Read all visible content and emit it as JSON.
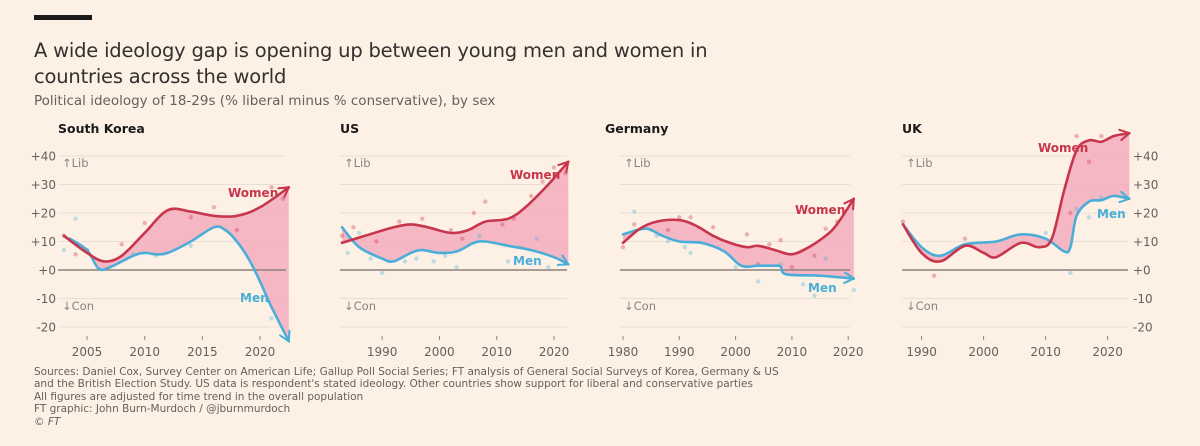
{
  "title": "A wide ideology gap is opening up between young men and women in countries across the world",
  "subtitle": "Political ideology of 18-29s (% liberal minus % conservative), by sex",
  "footer": {
    "sources": "Sources: Daniel Cox, Survey Center on American Life; Gallup Poll Social Series; FT analysis of General Social Surveys of Korea, Germany & US",
    "sources2": "and the British Election Study. US data is respondent's stated ideology. Other countries show support for liberal and conservative parties",
    "note": "All figures are adjusted for time trend in the overall population",
    "credit": "FT graphic: John Burn-Murdoch / @jburnmurdoch",
    "copyright": "© FT"
  },
  "colors": {
    "women": "#c7364c",
    "men": "#4aaed8",
    "gap_fill": "#f4a9bb",
    "background": "#fdf1e6"
  },
  "chart_data": [
    {
      "type": "line",
      "title": "South Korea",
      "ylim": [
        -20,
        40
      ],
      "yticks": [
        "+40",
        "+30",
        "+20",
        "+10",
        "+0",
        "-10",
        "-20"
      ],
      "y_axis_side": "left",
      "xticks": [
        2005,
        2010,
        2015,
        2020
      ],
      "xlim": [
        2003,
        2022.5
      ],
      "lib_label": "↑Lib",
      "con_label": "↓Con",
      "series": [
        {
          "name": "Women",
          "trend": [
            [
              2003,
              12
            ],
            [
              2005,
              6
            ],
            [
              2006.5,
              3
            ],
            [
              2008,
              5
            ],
            [
              2010,
              13
            ],
            [
              2012,
              21
            ],
            [
              2014,
              20.5
            ],
            [
              2016,
              19
            ],
            [
              2018,
              19
            ],
            [
              2020,
              22
            ],
            [
              2022.5,
              29
            ]
          ],
          "points": [
            [
              2003,
              12
            ],
            [
              2004,
              5.5
            ],
            [
              2005,
              7
            ],
            [
              2008,
              9
            ],
            [
              2010,
              16.5
            ],
            [
              2014,
              18.5
            ],
            [
              2016,
              22
            ],
            [
              2018,
              14
            ],
            [
              2021,
              29
            ],
            [
              2022,
              25
            ]
          ]
        },
        {
          "name": "Men",
          "trend": [
            [
              2003.5,
              11
            ],
            [
              2005,
              7
            ],
            [
              2006,
              0.5
            ],
            [
              2007,
              1
            ],
            [
              2009,
              5
            ],
            [
              2010,
              6
            ],
            [
              2011,
              5.5
            ],
            [
              2012,
              6
            ],
            [
              2014,
              10
            ],
            [
              2016,
              15
            ],
            [
              2017,
              14
            ],
            [
              2018,
              10
            ],
            [
              2019,
              4
            ],
            [
              2020,
              -4
            ],
            [
              2021,
              -13
            ],
            [
              2022.5,
              -25
            ]
          ],
          "points": [
            [
              2003,
              7
            ],
            [
              2004,
              18
            ],
            [
              2005,
              7
            ],
            [
              2009,
              5.5
            ],
            [
              2011,
              5
            ],
            [
              2014,
              8.5
            ],
            [
              2021,
              -17
            ]
          ]
        }
      ]
    },
    {
      "type": "line",
      "title": "US",
      "ylim": [
        -20,
        40
      ],
      "y_axis_side": "none",
      "xticks": [
        1990,
        2000,
        2010,
        2020
      ],
      "xlim": [
        1983,
        2022.5
      ],
      "lib_label": "↑Lib",
      "con_label": "↓Con",
      "series": [
        {
          "name": "Women",
          "trend": [
            [
              1983,
              9.5
            ],
            [
              1987,
              12
            ],
            [
              1992,
              15
            ],
            [
              1995,
              16
            ],
            [
              1998,
              15
            ],
            [
              2002,
              13
            ],
            [
              2005,
              14
            ],
            [
              2008,
              17
            ],
            [
              2012,
              18
            ],
            [
              2015,
              22
            ],
            [
              2019,
              30
            ],
            [
              2022.5,
              38
            ]
          ],
          "points": [
            [
              1983,
              12
            ],
            [
              1985,
              15
            ],
            [
              1989,
              10
            ],
            [
              1993,
              17
            ],
            [
              1997,
              18
            ],
            [
              2002,
              14
            ],
            [
              2004,
              11
            ],
            [
              2006,
              20
            ],
            [
              2008,
              24
            ],
            [
              2011,
              16
            ],
            [
              2013,
              18
            ],
            [
              2016,
              26
            ],
            [
              2018,
              31
            ],
            [
              2020,
              36
            ],
            [
              2022,
              34
            ]
          ]
        },
        {
          "name": "Men",
          "trend": [
            [
              1983,
              15
            ],
            [
              1986,
              8
            ],
            [
              1990,
              4
            ],
            [
              1992,
              3
            ],
            [
              1995,
              6
            ],
            [
              1997,
              7
            ],
            [
              2000,
              6
            ],
            [
              2003,
              6.5
            ],
            [
              2006,
              9.5
            ],
            [
              2008,
              10
            ],
            [
              2012,
              8.5
            ],
            [
              2016,
              7
            ],
            [
              2020,
              4.5
            ],
            [
              2022.5,
              2
            ]
          ],
          "points": [
            [
              1984,
              6
            ],
            [
              1986,
              13
            ],
            [
              1988,
              4
            ],
            [
              1990,
              -1
            ],
            [
              1994,
              3
            ],
            [
              1996,
              4
            ],
            [
              1999,
              3
            ],
            [
              2001,
              5
            ],
            [
              2003,
              1
            ],
            [
              2007,
              12
            ],
            [
              2012,
              3
            ],
            [
              2014,
              8
            ],
            [
              2017,
              11
            ],
            [
              2019,
              1
            ]
          ]
        }
      ]
    },
    {
      "type": "line",
      "title": "Germany",
      "ylim": [
        -20,
        40
      ],
      "y_axis_side": "none",
      "xticks": [
        1980,
        1990,
        2000,
        2010,
        2020
      ],
      "xlim": [
        1980,
        2021
      ],
      "lib_label": "↑Lib",
      "con_label": "↓Con",
      "series": [
        {
          "name": "Women",
          "trend": [
            [
              1980,
              9.5
            ],
            [
              1983,
              14.5
            ],
            [
              1986,
              17
            ],
            [
              1990,
              17.5
            ],
            [
              1993,
              15.5
            ],
            [
              1996,
              12
            ],
            [
              1999,
              9.5
            ],
            [
              2002,
              8
            ],
            [
              2004,
              8.5
            ],
            [
              2007,
              7
            ],
            [
              2010,
              5.5
            ],
            [
              2013,
              8
            ],
            [
              2016,
              12
            ],
            [
              2018,
              16
            ],
            [
              2021,
              25
            ]
          ],
          "points": [
            [
              1980,
              8
            ],
            [
              1982,
              16
            ],
            [
              1988,
              14
            ],
            [
              1990,
              18.5
            ],
            [
              1992,
              18.5
            ],
            [
              1996,
              15
            ],
            [
              2002,
              12.5
            ],
            [
              2004,
              2
            ],
            [
              2006,
              9
            ],
            [
              2008,
              10.5
            ],
            [
              2010,
              1
            ],
            [
              2014,
              5
            ],
            [
              2016,
              14.5
            ],
            [
              2018,
              17
            ]
          ]
        },
        {
          "name": "Men",
          "trend": [
            [
              1980,
              12.5
            ],
            [
              1984,
              14.5
            ],
            [
              1987,
              12
            ],
            [
              1990,
              10
            ],
            [
              1994,
              9.5
            ],
            [
              1998,
              6.5
            ],
            [
              2001,
              1.5
            ],
            [
              2004,
              1.5
            ],
            [
              2007,
              1.5
            ],
            [
              2008,
              1.2
            ],
            [
              2009,
              -1.5
            ],
            [
              2015,
              -2
            ],
            [
              2021,
              -3
            ]
          ],
          "points": [
            [
              1982,
              20.5
            ],
            [
              1986,
              12
            ],
            [
              1988,
              10
            ],
            [
              1991,
              8
            ],
            [
              1992,
              6
            ],
            [
              2000,
              1
            ],
            [
              2004,
              -4
            ],
            [
              2008,
              2
            ],
            [
              2012,
              -5
            ],
            [
              2014,
              -9
            ],
            [
              2016,
              4
            ],
            [
              2021,
              -7
            ]
          ]
        }
      ]
    },
    {
      "type": "line",
      "title": "UK",
      "ylim": [
        -20,
        40
      ],
      "yticks": [
        "+40",
        "+30",
        "+20",
        "+10",
        "+0",
        "-10",
        "-20"
      ],
      "y_axis_side": "right",
      "xticks": [
        1990,
        2000,
        2010,
        2020
      ],
      "xlim": [
        1987,
        2023.5
      ],
      "lib_label": "↑Lib",
      "con_label": "↓Con",
      "series": [
        {
          "name": "Women",
          "trend": [
            [
              1987,
              16
            ],
            [
              1990,
              6
            ],
            [
              1993,
              3
            ],
            [
              1997,
              8.5
            ],
            [
              2000,
              6
            ],
            [
              2002,
              4.5
            ],
            [
              2006,
              9.5
            ],
            [
              2009,
              8
            ],
            [
              2011,
              11
            ],
            [
              2013,
              28
            ],
            [
              2015,
              42
            ],
            [
              2017,
              45.5
            ],
            [
              2019,
              45
            ],
            [
              2021,
              47
            ],
            [
              2023.5,
              48
            ]
          ],
          "points": [
            [
              1987,
              17
            ],
            [
              1992,
              -2
            ],
            [
              1997,
              11
            ],
            [
              2014,
              20
            ],
            [
              2015,
              47
            ],
            [
              2017,
              38
            ],
            [
              2019,
              47
            ]
          ]
        },
        {
          "name": "Men",
          "trend": [
            [
              1987,
              16
            ],
            [
              1990,
              8
            ],
            [
              1993,
              5
            ],
            [
              1997,
              9
            ],
            [
              2002,
              10
            ],
            [
              2006,
              12.5
            ],
            [
              2010,
              11
            ],
            [
              2013,
              6.5
            ],
            [
              2014,
              8
            ],
            [
              2015,
              19
            ],
            [
              2017,
              24
            ],
            [
              2019,
              24.5
            ],
            [
              2021,
              26
            ],
            [
              2023.5,
              25
            ]
          ],
          "points": [
            [
              2010,
              13
            ],
            [
              2014,
              -1
            ],
            [
              2015,
              21.5
            ],
            [
              2017,
              18.5
            ],
            [
              2019,
              25.5
            ]
          ]
        }
      ]
    }
  ]
}
